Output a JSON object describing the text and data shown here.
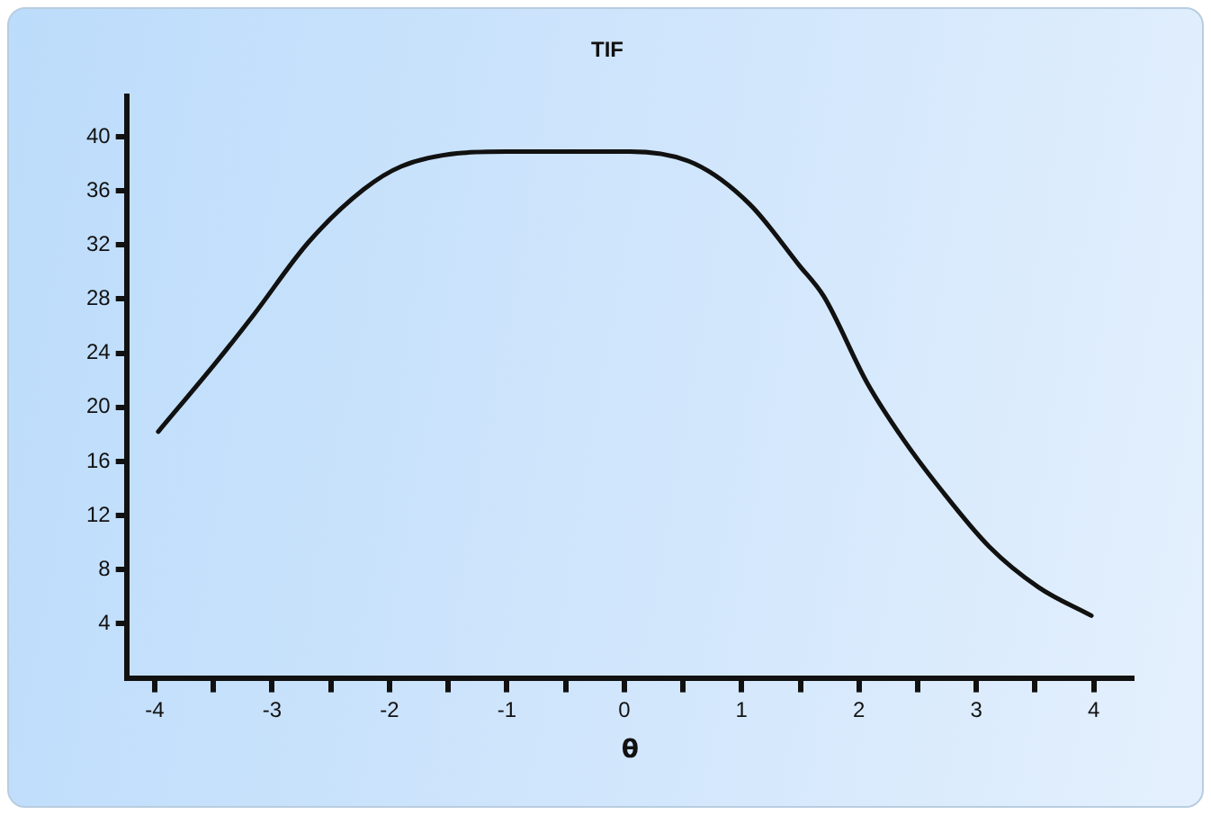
{
  "chart_data": {
    "type": "line",
    "title": "TIF",
    "xlabel": "θ",
    "xlim": [
      -4.24,
      4.34
    ],
    "xticks": [
      -4,
      {
        "value": -3.5,
        "label": null
      },
      -3,
      {
        "value": -2.5,
        "label": null
      },
      -2,
      {
        "value": -1.5,
        "label": null
      },
      -1,
      {
        "value": -0.5,
        "label": null
      },
      0,
      {
        "value": 0.5,
        "label": null
      },
      1,
      {
        "value": 1.5,
        "label": null
      },
      2,
      {
        "value": 2.5,
        "label": null
      },
      3,
      {
        "value": 3.5,
        "label": null
      },
      4
    ],
    "ylim": [
      0,
      43
    ],
    "yticks": [
      4,
      8,
      12,
      16,
      20,
      24,
      28,
      32,
      36,
      40
    ],
    "grid": false,
    "legend": false,
    "marker": "none",
    "line_style": "solid",
    "series": [
      {
        "color": "#111111",
        "x": [
          -3.97,
          -3.47,
          -3.16,
          -2.69,
          -2.22,
          -1.9,
          -1.38,
          -1.0,
          -0.5,
          0.05,
          0.6,
          1.07,
          1.49,
          1.7,
          2.07,
          2.38,
          2.7,
          3.11,
          3.53,
          3.98
        ],
        "values": [
          18.2,
          23.4,
          26.8,
          32.2,
          36.1,
          37.8,
          38.8,
          38.9,
          38.9,
          38.9,
          38.0,
          35.0,
          30.5,
          28.2,
          21.8,
          17.6,
          13.9,
          9.7,
          6.7,
          4.6
        ]
      }
    ]
  }
}
